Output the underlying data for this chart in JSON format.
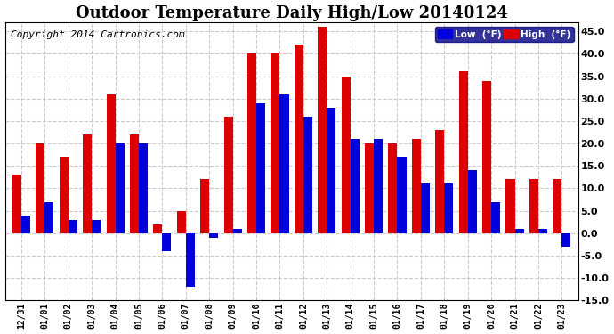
{
  "title": "Outdoor Temperature Daily High/Low 20140124",
  "copyright": "Copyright 2014 Cartronics.com",
  "dates": [
    "12/31",
    "01/01",
    "01/02",
    "01/03",
    "01/04",
    "01/05",
    "01/06",
    "01/07",
    "01/08",
    "01/09",
    "01/10",
    "01/11",
    "01/12",
    "01/13",
    "01/14",
    "01/15",
    "01/16",
    "01/17",
    "01/18",
    "01/19",
    "01/20",
    "01/21",
    "01/22",
    "01/23"
  ],
  "highs": [
    13,
    20,
    17,
    22,
    31,
    22,
    2,
    5,
    12,
    26,
    40,
    40,
    42,
    46,
    35,
    20,
    20,
    21,
    23,
    36,
    34,
    12,
    12,
    12
  ],
  "lows": [
    4,
    7,
    3,
    3,
    20,
    20,
    -4,
    -12,
    -1,
    1,
    29,
    31,
    26,
    28,
    21,
    21,
    17,
    11,
    11,
    14,
    7,
    1,
    1,
    -3
  ],
  "low_color": "#0000dd",
  "high_color": "#dd0000",
  "bg_color": "#ffffff",
  "plot_bg": "#ffffff",
  "grid_color": "#cccccc",
  "border_color": "#000000",
  "ylim": [
    -15,
    47
  ],
  "yticks": [
    -15.0,
    -10.0,
    -5.0,
    0.0,
    5.0,
    10.0,
    15.0,
    20.0,
    25.0,
    30.0,
    35.0,
    40.0,
    45.0
  ],
  "title_fontsize": 13,
  "copyright_fontsize": 8,
  "bar_width": 0.38,
  "legend_low_label": "Low  (°F)",
  "legend_high_label": "High  (°F)"
}
